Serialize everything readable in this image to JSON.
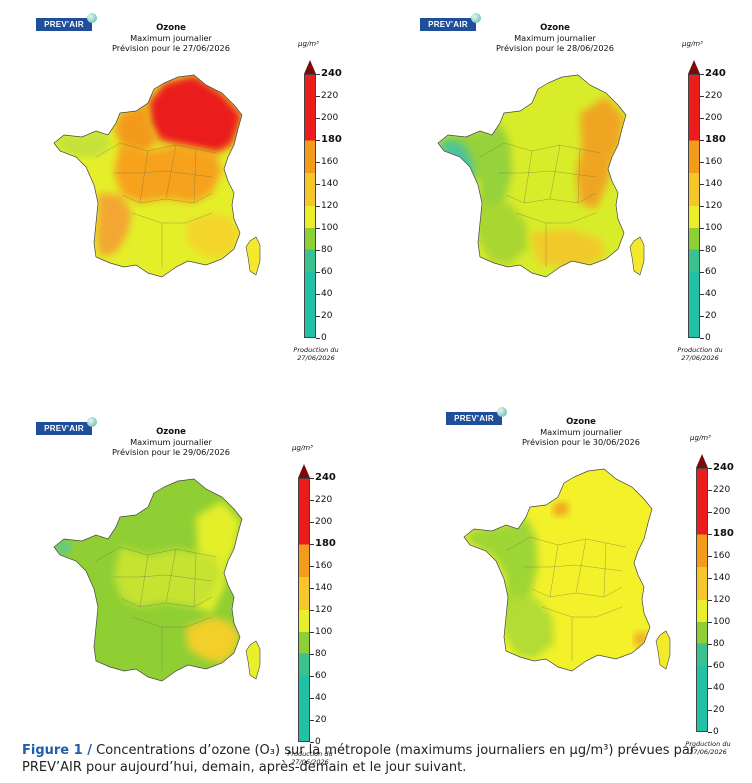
{
  "panels": [
    {
      "logo": "PREV'AIR",
      "title": "Ozone",
      "subtitle": "Maximum journalier",
      "forecast": "Prévision pour le 27/06/2026",
      "unit": "µg/m³",
      "production_line1": "Production du",
      "production_line2": "27/06/2026",
      "map": {
        "base": "#e4ef2a",
        "regions": [
          {
            "zone": "northeast",
            "value": 185,
            "color": "#ea1c1c"
          },
          {
            "zone": "north-center",
            "value": 150,
            "color": "#f39a1a"
          },
          {
            "zone": "center",
            "value": 150,
            "color": "#f7a21c"
          },
          {
            "zone": "southwest-coast",
            "value": 140,
            "color": "#f3a730"
          },
          {
            "zone": "brittany",
            "value": 100,
            "color": "#c4e23b"
          },
          {
            "zone": "southeast",
            "value": 120,
            "color": "#f4d529"
          }
        ]
      }
    },
    {
      "logo": "PREV'AIR",
      "title": "Ozone",
      "subtitle": "Maximum journalier",
      "forecast": "Prévision pour le 28/06/2026",
      "unit": "µg/m³",
      "production_line1": "Production du",
      "production_line2": "27/06/2026",
      "map": {
        "base": "#d9ec2a",
        "regions": [
          {
            "zone": "west",
            "value": 90,
            "color": "#95d23a"
          },
          {
            "zone": "west-coast",
            "value": 65,
            "color": "#4ec39a"
          },
          {
            "zone": "east",
            "value": 150,
            "color": "#f0a522"
          },
          {
            "zone": "southwest",
            "value": 95,
            "color": "#aad631"
          },
          {
            "zone": "south",
            "value": 115,
            "color": "#f2c92a"
          }
        ]
      }
    },
    {
      "logo": "PREV'AIR",
      "title": "Ozone",
      "subtitle": "Maximum journalier",
      "forecast": "Prévision pour le 29/06/2026",
      "unit": "µg/m³",
      "production_line1": "Production du",
      "production_line2": "27/06/2026",
      "map": {
        "base": "#8fcf34",
        "regions": [
          {
            "zone": "east",
            "value": 110,
            "color": "#e4ef2a"
          },
          {
            "zone": "southeast",
            "value": 130,
            "color": "#f3cf2a"
          },
          {
            "zone": "center",
            "value": 100,
            "color": "#c6e332"
          },
          {
            "zone": "brittany-tip",
            "value": 70,
            "color": "#5ac79a"
          }
        ]
      }
    },
    {
      "logo": "PREV'AIR",
      "title": "Ozone",
      "subtitle": "Maximum journalier",
      "forecast": "Prévision pour le 30/06/2026",
      "unit": "µg/m³",
      "production_line1": "Production du",
      "production_line2": "27/06/2026",
      "map": {
        "base": "#f2f12a",
        "regions": [
          {
            "zone": "west",
            "value": 90,
            "color": "#9ed636"
          },
          {
            "zone": "southwest",
            "value": 95,
            "color": "#b3dc36"
          },
          {
            "zone": "paris",
            "value": 150,
            "color": "#f19d24"
          },
          {
            "zone": "riviera",
            "value": 140,
            "color": "#f3a72c"
          }
        ]
      }
    }
  ],
  "colorbar": {
    "ticks": [
      {
        "value": 240,
        "label": "240",
        "bold": true
      },
      {
        "value": 220,
        "label": "220",
        "bold": false
      },
      {
        "value": 200,
        "label": "200",
        "bold": false
      },
      {
        "value": 180,
        "label": "180",
        "bold": true
      },
      {
        "value": 160,
        "label": "160",
        "bold": false
      },
      {
        "value": 140,
        "label": "140",
        "bold": false
      },
      {
        "value": 120,
        "label": "120",
        "bold": false
      },
      {
        "value": 100,
        "label": "100",
        "bold": false
      },
      {
        "value": 80,
        "label": "80",
        "bold": false
      },
      {
        "value": 60,
        "label": "60",
        "bold": false
      },
      {
        "value": 40,
        "label": "40",
        "bold": false
      },
      {
        "value": 20,
        "label": "20",
        "bold": false
      },
      {
        "value": 0,
        "label": "0",
        "bold": false
      }
    ],
    "stops": [
      {
        "from": 0,
        "to": 60,
        "color": "#20c1a6"
      },
      {
        "from": 60,
        "to": 80,
        "color": "#3cc28f"
      },
      {
        "from": 80,
        "to": 100,
        "color": "#8dcf34"
      },
      {
        "from": 100,
        "to": 120,
        "color": "#e9ef2a"
      },
      {
        "from": 120,
        "to": 150,
        "color": "#f6c62a"
      },
      {
        "from": 150,
        "to": 180,
        "color": "#f39b1a"
      },
      {
        "from": 180,
        "to": 240,
        "color": "#ea1c1c"
      }
    ]
  },
  "caption": {
    "label": "Figure 1 /",
    "text": " Concentrations d’ozone (O₃) sur la métropole (maximums journaliers en µg/m³) prévues par PREV’AIR pour aujourd’hui, demain, après-demain et le jour suivant."
  }
}
